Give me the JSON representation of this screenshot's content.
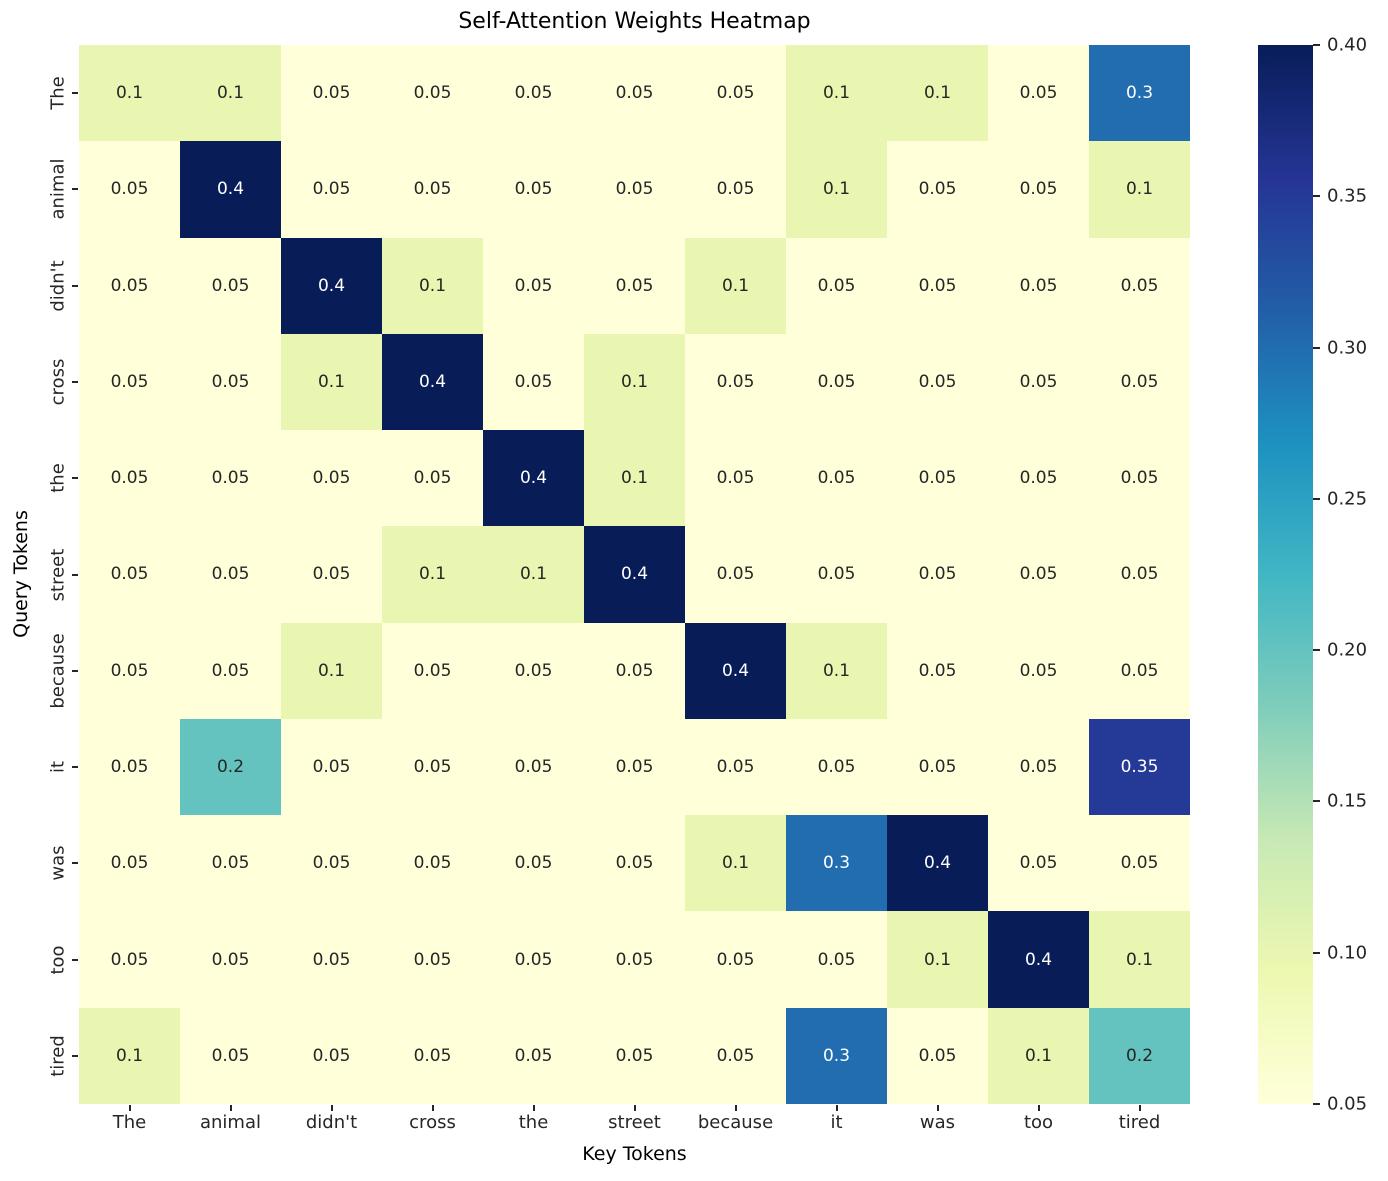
{
  "chart_data": {
    "type": "heatmap",
    "title": "Self-Attention Weights Heatmap",
    "xlabel": "Key Tokens",
    "ylabel": "Query Tokens",
    "x_categories": [
      "The",
      "animal",
      "didn't",
      "cross",
      "the",
      "street",
      "because",
      "it",
      "was",
      "too",
      "tired"
    ],
    "y_categories": [
      "The",
      "animal",
      "didn't",
      "cross",
      "the",
      "street",
      "because",
      "it",
      "was",
      "too",
      "tired"
    ],
    "values": [
      [
        0.1,
        0.1,
        0.05,
        0.05,
        0.05,
        0.05,
        0.05,
        0.1,
        0.1,
        0.05,
        0.3
      ],
      [
        0.05,
        0.4,
        0.05,
        0.05,
        0.05,
        0.05,
        0.05,
        0.1,
        0.05,
        0.05,
        0.1
      ],
      [
        0.05,
        0.05,
        0.4,
        0.1,
        0.05,
        0.05,
        0.1,
        0.05,
        0.05,
        0.05,
        0.05
      ],
      [
        0.05,
        0.05,
        0.1,
        0.4,
        0.05,
        0.1,
        0.05,
        0.05,
        0.05,
        0.05,
        0.05
      ],
      [
        0.05,
        0.05,
        0.05,
        0.05,
        0.4,
        0.1,
        0.05,
        0.05,
        0.05,
        0.05,
        0.05
      ],
      [
        0.05,
        0.05,
        0.05,
        0.1,
        0.1,
        0.4,
        0.05,
        0.05,
        0.05,
        0.05,
        0.05
      ],
      [
        0.05,
        0.05,
        0.1,
        0.05,
        0.05,
        0.05,
        0.4,
        0.1,
        0.05,
        0.05,
        0.05
      ],
      [
        0.05,
        0.2,
        0.05,
        0.05,
        0.05,
        0.05,
        0.05,
        0.05,
        0.05,
        0.05,
        0.35
      ],
      [
        0.05,
        0.05,
        0.05,
        0.05,
        0.05,
        0.05,
        0.1,
        0.3,
        0.4,
        0.05,
        0.05
      ],
      [
        0.05,
        0.05,
        0.05,
        0.05,
        0.05,
        0.05,
        0.05,
        0.05,
        0.1,
        0.4,
        0.1
      ],
      [
        0.1,
        0.05,
        0.05,
        0.05,
        0.05,
        0.05,
        0.05,
        0.3,
        0.05,
        0.1,
        0.2
      ]
    ],
    "vmin": 0.05,
    "vmax": 0.4,
    "colorbar_ticks": [
      0.05,
      0.1,
      0.15,
      0.2,
      0.25,
      0.3,
      0.35,
      0.4
    ],
    "colormap": "YlGnBu",
    "colormap_stops": [
      {
        "pos": 0.0,
        "color": "#ffffd9"
      },
      {
        "pos": 0.125,
        "color": "#edf8b1"
      },
      {
        "pos": 0.25,
        "color": "#c7e9b4"
      },
      {
        "pos": 0.375,
        "color": "#7fcdbb"
      },
      {
        "pos": 0.5,
        "color": "#41b6c4"
      },
      {
        "pos": 0.625,
        "color": "#1d91c0"
      },
      {
        "pos": 0.75,
        "color": "#225ea8"
      },
      {
        "pos": 0.875,
        "color": "#253494"
      },
      {
        "pos": 1.0,
        "color": "#081d58"
      }
    ],
    "annot_text_dark": "#262626",
    "annot_text_light": "#ffffff",
    "legend_position": "right",
    "grid": false
  }
}
